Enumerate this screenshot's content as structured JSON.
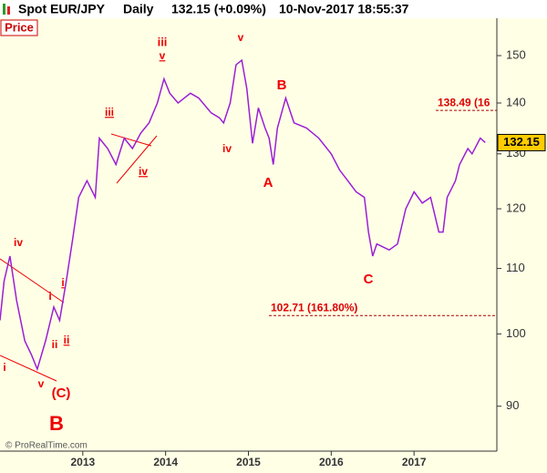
{
  "chart_data": {
    "type": "line",
    "title": "Spot EUR/JPY",
    "period": "Daily",
    "last_quote": "132.15 (+0.09%)",
    "timestamp": "10-Nov-2017 18:55:37",
    "y_axis_label": "Price",
    "source": "© ProRealTime.com",
    "color": "#9b1fd6",
    "log_scale": true,
    "x": [
      2012.0,
      2012.05,
      2012.12,
      2012.2,
      2012.3,
      2012.38,
      2012.45,
      2012.55,
      2012.65,
      2012.72,
      2012.8,
      2012.88,
      2012.95,
      2013.05,
      2013.15,
      2013.2,
      2013.3,
      2013.4,
      2013.5,
      2013.6,
      2013.7,
      2013.8,
      2013.9,
      2013.98,
      2014.05,
      2014.15,
      2014.3,
      2014.4,
      2014.55,
      2014.65,
      2014.7,
      2014.78,
      2014.85,
      2014.92,
      2014.98,
      2015.05,
      2015.12,
      2015.2,
      2015.25,
      2015.3,
      2015.35,
      2015.45,
      2015.55,
      2015.7,
      2015.85,
      2016.0,
      2016.1,
      2016.2,
      2016.3,
      2016.4,
      2016.45,
      2016.5,
      2016.55,
      2016.7,
      2016.8,
      2016.9,
      2017.0,
      2017.1,
      2017.2,
      2017.3,
      2017.35,
      2017.4,
      2017.5,
      2017.55,
      2017.65,
      2017.7,
      2017.8,
      2017.86
    ],
    "values": [
      102,
      108,
      112,
      105,
      99,
      97,
      95,
      99,
      104,
      102,
      108,
      115,
      122,
      125,
      122,
      133,
      131,
      128,
      133,
      131,
      134,
      136,
      140,
      145,
      142,
      140,
      142,
      141,
      138,
      137,
      136,
      140,
      148,
      149,
      143,
      132,
      139,
      135,
      133,
      128,
      135,
      141,
      136,
      135,
      133,
      130,
      127,
      125,
      123,
      122,
      116,
      112,
      114,
      113,
      114,
      120,
      123,
      121,
      122,
      116,
      116,
      122,
      125,
      128,
      131,
      130,
      133,
      132.15
    ],
    "price_tag": 132.15,
    "xlim": [
      2012.0,
      2018.0
    ],
    "xticks": [
      2013,
      2014,
      2015,
      2016,
      2017
    ],
    "ylim": [
      84.3,
      158.4
    ],
    "yticks": [
      90,
      100,
      110,
      120,
      130,
      140,
      150
    ],
    "levels": [
      {
        "value": 138.49,
        "label": "138.49 (16"
      },
      {
        "value": 102.71,
        "label": "102.71 (161.80%)"
      }
    ],
    "annotations": [
      {
        "text": "iii",
        "underline": false
      },
      {
        "text": "v",
        "underline": true
      },
      {
        "text": "v",
        "underline": false
      },
      {
        "text": "B",
        "underline": false
      },
      {
        "text": "iii",
        "underline": true
      },
      {
        "text": "iv",
        "underline": false
      },
      {
        "text": "iv",
        "underline": true
      },
      {
        "text": "A",
        "underline": false
      },
      {
        "text": "iv",
        "underline": false
      },
      {
        "text": "i",
        "underline": true
      },
      {
        "text": "i",
        "underline": false
      },
      {
        "text": "ii",
        "underline": true
      },
      {
        "text": "ii",
        "underline": false
      },
      {
        "text": "i",
        "underline": false
      },
      {
        "text": "v",
        "underline": false
      },
      {
        "text": "(C)",
        "underline": false
      },
      {
        "text": "C",
        "underline": false
      },
      {
        "text": "B",
        "underline": false
      }
    ]
  }
}
